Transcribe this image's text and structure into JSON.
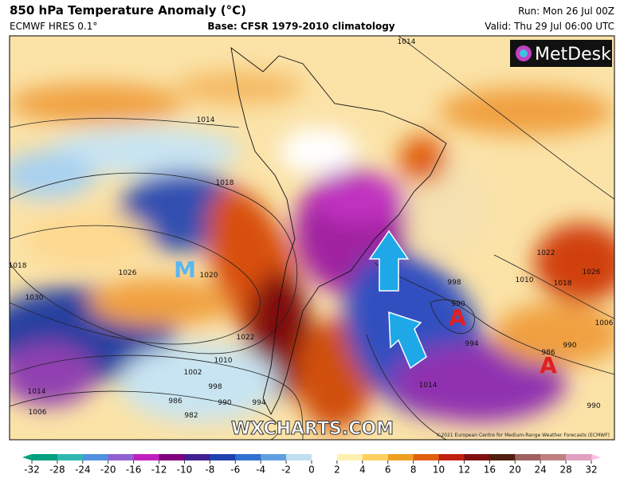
{
  "header": {
    "title": "850 hPa Temperature Anomaly (°C)",
    "model": "ECMWF HRES 0.1°",
    "base": "Base: CFSR 1979-2010 climatology",
    "run": "Run: Mon 26 Jul 00Z",
    "valid": "Valid: Thu 29 Jul 06:00 UTC"
  },
  "logo": "MetDesk",
  "watermark": "WXCHARTS.COM",
  "copyright": "©2021 European Centre for Medium-Range Weather Forecasts (ECMWF)",
  "markers": [
    "M",
    "A",
    "A"
  ],
  "isobar_labels": [
    1014,
    1014,
    1018,
    1018,
    1026,
    1020,
    1030,
    1022,
    1010,
    1002,
    998,
    990,
    994,
    986,
    982,
    1014,
    1006,
    998,
    990,
    994,
    986,
    990,
    1006,
    1010,
    1018,
    1022,
    1026,
    990,
    1014
  ],
  "colorbar": {
    "ticks": [
      -32,
      -28,
      -24,
      -20,
      -16,
      -12,
      -10,
      -8,
      -6,
      -4,
      -2,
      0,
      2,
      4,
      6,
      8,
      10,
      12,
      16,
      20,
      24,
      28,
      32
    ]
  }
}
